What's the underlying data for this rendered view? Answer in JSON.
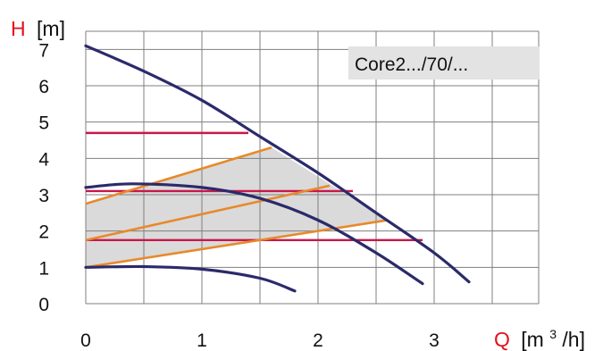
{
  "chart_data": {
    "type": "line",
    "model_label": "Core2.../70/...",
    "y_axis": {
      "symbol": "H",
      "unit": "[m]",
      "range": [
        0,
        7.5
      ],
      "ticks": [
        0,
        1,
        2,
        3,
        4,
        5,
        6,
        7
      ]
    },
    "x_axis": {
      "symbol": "Q",
      "unit_prefix": "[m",
      "unit_sup": "3",
      "unit_suffix": "/h]",
      "range": [
        0,
        3.9
      ],
      "ticks": [
        0,
        1,
        2,
        3
      ]
    },
    "grid": true,
    "colors": {
      "pump_curve": "#2b2a6b",
      "constant_speed": "#c8174b",
      "proportional": "#e8892a",
      "shade": "#dadada",
      "grid": "#7f7f7f",
      "axis_title": "#e3101b",
      "model_box": "#e3e3e3"
    },
    "pump_curves": [
      {
        "points": [
          [
            0,
            7.1
          ],
          [
            0.5,
            6.4
          ],
          [
            1.0,
            5.6
          ],
          [
            1.5,
            4.6
          ],
          [
            2.0,
            3.6
          ],
          [
            2.5,
            2.5
          ],
          [
            3.0,
            1.4
          ],
          [
            3.3,
            0.6
          ]
        ]
      },
      {
        "points": [
          [
            0,
            3.2
          ],
          [
            0.4,
            3.3
          ],
          [
            1.0,
            3.2
          ],
          [
            1.5,
            2.9
          ],
          [
            2.0,
            2.3
          ],
          [
            2.5,
            1.4
          ],
          [
            2.9,
            0.55
          ]
        ]
      },
      {
        "points": [
          [
            0,
            1.0
          ],
          [
            0.5,
            1.02
          ],
          [
            1.0,
            0.95
          ],
          [
            1.5,
            0.7
          ],
          [
            1.8,
            0.35
          ]
        ]
      }
    ],
    "constant_lines": [
      {
        "h": 4.7,
        "q_end": 1.4
      },
      {
        "h": 3.1,
        "q_end": 2.3
      },
      {
        "h": 1.75,
        "q_end": 2.9
      }
    ],
    "proportional_lines": [
      {
        "points": [
          [
            0,
            2.75
          ],
          [
            1.6,
            4.3
          ]
        ]
      },
      {
        "points": [
          [
            0,
            1.75
          ],
          [
            2.1,
            3.25
          ]
        ]
      },
      {
        "points": [
          [
            0,
            1.0
          ],
          [
            2.6,
            2.3
          ]
        ]
      }
    ],
    "shaded_region": [
      [
        0,
        1.0
      ],
      [
        2.6,
        2.3
      ],
      [
        1.6,
        4.3
      ],
      [
        0,
        2.75
      ]
    ]
  }
}
